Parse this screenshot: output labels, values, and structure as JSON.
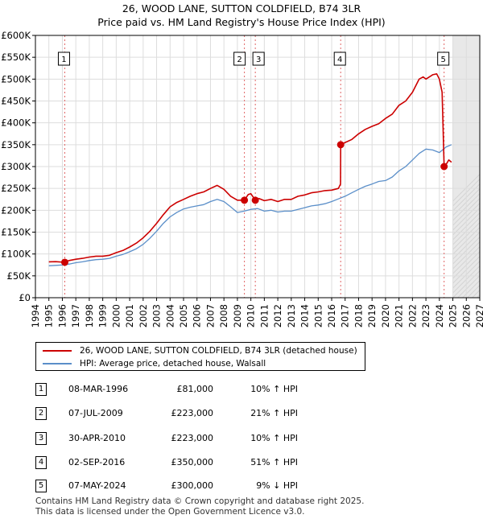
{
  "chart_data": {
    "type": "line",
    "title": "26, WOOD LANE, SUTTON COLDFIELD, B74 3LR",
    "subtitle": "Price paid vs. HM Land Registry's House Price Index (HPI)",
    "xlim": [
      1994,
      2027
    ],
    "ylim": [
      0,
      600000
    ],
    "y_ticks": [
      {
        "value": 0,
        "label": "£0"
      },
      {
        "value": 50000,
        "label": "£50K"
      },
      {
        "value": 100000,
        "label": "£100K"
      },
      {
        "value": 150000,
        "label": "£150K"
      },
      {
        "value": 200000,
        "label": "£200K"
      },
      {
        "value": 250000,
        "label": "£250K"
      },
      {
        "value": 300000,
        "label": "£300K"
      },
      {
        "value": 350000,
        "label": "£350K"
      },
      {
        "value": 400000,
        "label": "£400K"
      },
      {
        "value": 450000,
        "label": "£450K"
      },
      {
        "value": 500000,
        "label": "£500K"
      },
      {
        "value": 550000,
        "label": "£550K"
      },
      {
        "value": 600000,
        "label": "£600K"
      }
    ],
    "x_ticks": [
      "1994",
      "1995",
      "1996",
      "1997",
      "1998",
      "1999",
      "2000",
      "2001",
      "2002",
      "2003",
      "2004",
      "2005",
      "2006",
      "2007",
      "2008",
      "2009",
      "2010",
      "2011",
      "2012",
      "2013",
      "2014",
      "2015",
      "2016",
      "2017",
      "2018",
      "2019",
      "2020",
      "2021",
      "2022",
      "2023",
      "2024",
      "2025",
      "2026",
      "2027"
    ],
    "shaded_future_from": 2025,
    "series": [
      {
        "name": "26, WOOD LANE, SUTTON COLDFIELD, B74 3LR (detached house)",
        "color": "#cc0000",
        "x": [
          1995.0,
          1995.5,
          1996.18,
          1996.5,
          1997.0,
          1997.5,
          1998.0,
          1998.5,
          1999.0,
          1999.5,
          2000.0,
          2000.5,
          2001.0,
          2001.5,
          2002.0,
          2002.5,
          2003.0,
          2003.5,
          2004.0,
          2004.5,
          2005.0,
          2005.5,
          2006.0,
          2006.5,
          2007.0,
          2007.5,
          2008.0,
          2008.5,
          2009.0,
          2009.52,
          2009.8,
          2010.0,
          2010.33,
          2010.6,
          2011.0,
          2011.5,
          2012.0,
          2012.5,
          2013.0,
          2013.5,
          2014.0,
          2014.5,
          2015.0,
          2015.5,
          2016.0,
          2016.5,
          2016.66,
          2016.67,
          2017.0,
          2017.5,
          2018.0,
          2018.5,
          2019.0,
          2019.5,
          2020.0,
          2020.5,
          2021.0,
          2021.5,
          2022.0,
          2022.5,
          2022.8,
          2023.0,
          2023.5,
          2023.8,
          2024.0,
          2024.2,
          2024.35,
          2024.5,
          2024.7,
          2024.9
        ],
        "values": [
          82000,
          82500,
          81000,
          85000,
          88000,
          90000,
          93000,
          95000,
          95000,
          97000,
          103000,
          108000,
          116000,
          125000,
          137000,
          152000,
          170000,
          190000,
          208000,
          218000,
          225000,
          232000,
          238000,
          242000,
          250000,
          257000,
          248000,
          232000,
          223000,
          223000,
          236000,
          238000,
          223000,
          227000,
          222000,
          225000,
          220000,
          225000,
          225000,
          232000,
          235000,
          240000,
          242000,
          245000,
          246000,
          250000,
          260000,
          350000,
          355000,
          362000,
          375000,
          385000,
          392000,
          398000,
          410000,
          420000,
          440000,
          450000,
          470000,
          500000,
          505000,
          500000,
          510000,
          512000,
          500000,
          470000,
          300000,
          305000,
          315000,
          310000
        ]
      },
      {
        "name": "HPI: Average price, detached house, Walsall",
        "color": "#5b8fc9",
        "x": [
          1995.0,
          1995.5,
          1996.0,
          1996.5,
          1997.0,
          1997.5,
          1998.0,
          1998.5,
          1999.0,
          1999.5,
          2000.0,
          2000.5,
          2001.0,
          2001.5,
          2002.0,
          2002.5,
          2003.0,
          2003.5,
          2004.0,
          2004.5,
          2005.0,
          2005.5,
          2006.0,
          2006.5,
          2007.0,
          2007.5,
          2008.0,
          2008.5,
          2009.0,
          2009.5,
          2010.0,
          2010.5,
          2011.0,
          2011.5,
          2012.0,
          2012.5,
          2013.0,
          2013.5,
          2014.0,
          2014.5,
          2015.0,
          2015.5,
          2016.0,
          2016.5,
          2017.0,
          2017.5,
          2018.0,
          2018.5,
          2019.0,
          2019.5,
          2020.0,
          2020.5,
          2021.0,
          2021.5,
          2022.0,
          2022.5,
          2023.0,
          2023.5,
          2024.0,
          2024.5,
          2024.9
        ],
        "values": [
          73000,
          74000,
          75000,
          77000,
          80000,
          82000,
          85000,
          87000,
          88000,
          90000,
          95000,
          99000,
          105000,
          112000,
          122000,
          136000,
          152000,
          170000,
          185000,
          195000,
          203000,
          207000,
          210000,
          213000,
          220000,
          225000,
          220000,
          208000,
          195000,
          198000,
          202000,
          204000,
          198000,
          200000,
          196000,
          198000,
          198000,
          202000,
          206000,
          210000,
          212000,
          215000,
          220000,
          226000,
          232000,
          240000,
          248000,
          255000,
          260000,
          266000,
          268000,
          276000,
          290000,
          300000,
          315000,
          330000,
          340000,
          338000,
          332000,
          345000,
          350000
        ]
      }
    ],
    "sale_points": [
      {
        "n": "1",
        "x": 1996.18,
        "value": 81000
      },
      {
        "n": "2",
        "x": 2009.52,
        "value": 223000
      },
      {
        "n": "3",
        "x": 2010.33,
        "value": 223000
      },
      {
        "n": "4",
        "x": 2016.67,
        "value": 350000
      },
      {
        "n": "5",
        "x": 2024.35,
        "value": 300000
      }
    ]
  },
  "legend": {
    "red_label": "26, WOOD LANE, SUTTON COLDFIELD, B74 3LR (detached house)",
    "blue_label": "HPI: Average price, detached house, Walsall"
  },
  "transactions": [
    {
      "n": "1",
      "date": "08-MAR-1996",
      "price": "£81,000",
      "hpi": "10% ↑ HPI"
    },
    {
      "n": "2",
      "date": "07-JUL-2009",
      "price": "£223,000",
      "hpi": "21% ↑ HPI"
    },
    {
      "n": "3",
      "date": "30-APR-2010",
      "price": "£223,000",
      "hpi": "10% ↑ HPI"
    },
    {
      "n": "4",
      "date": "02-SEP-2016",
      "price": "£350,000",
      "hpi": "51% ↑ HPI"
    },
    {
      "n": "5",
      "date": "07-MAY-2024",
      "price": "£300,000",
      "hpi": "9% ↓ HPI"
    }
  ],
  "footer": {
    "line1": "Contains HM Land Registry data © Crown copyright and database right 2025.",
    "line2": "This data is licensed under the Open Government Licence v3.0."
  }
}
